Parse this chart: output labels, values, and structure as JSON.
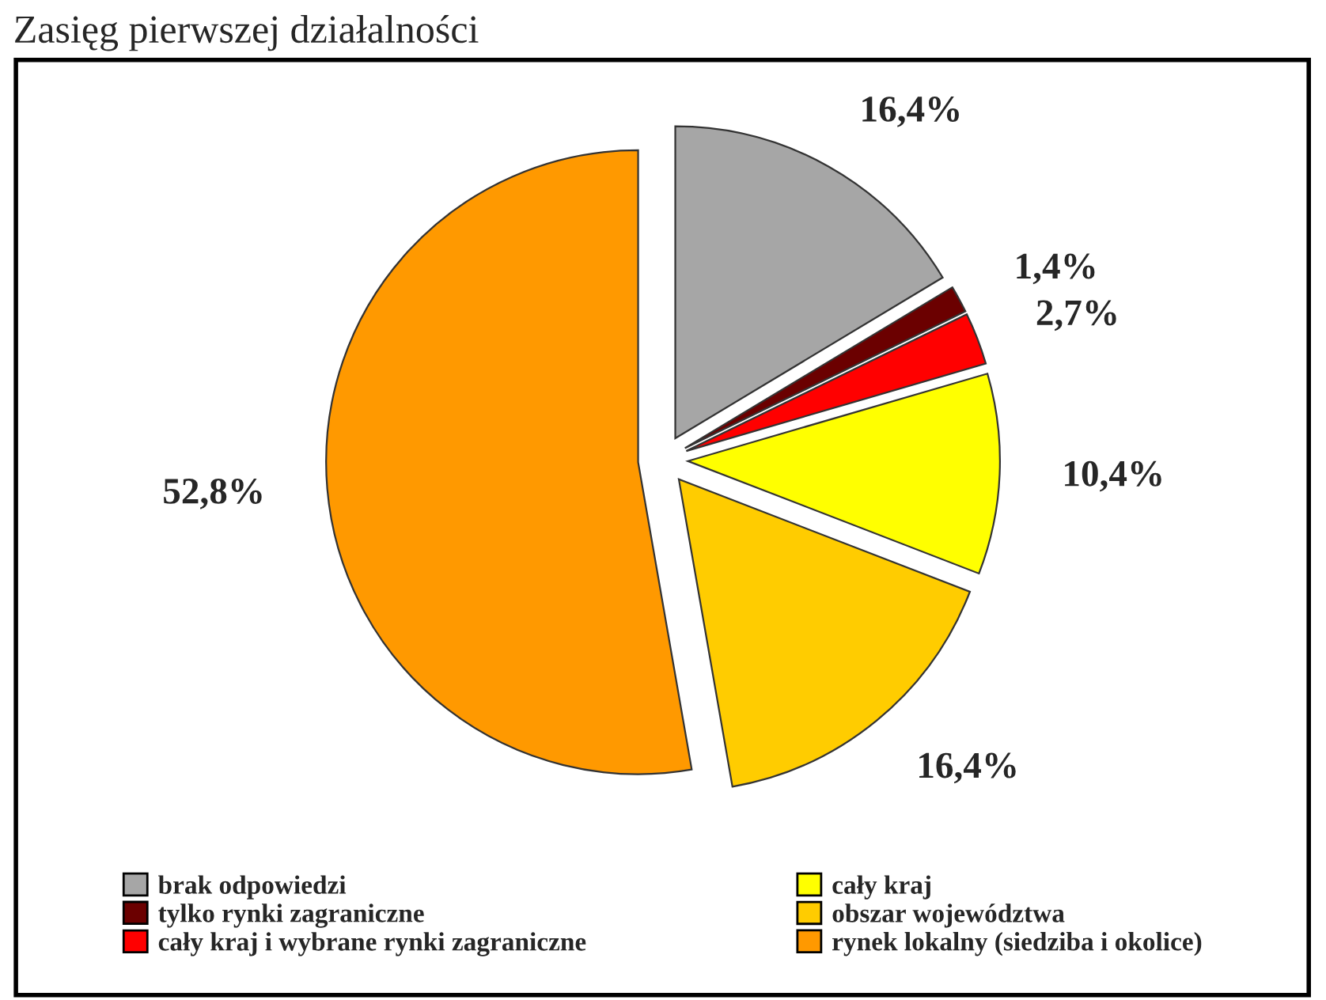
{
  "chart_data": {
    "type": "pie",
    "title": "Zasięg pierwszej działalności",
    "categories": [
      "brak odpowiedzi",
      "tylko rynki zagraniczne",
      "cały kraj i wybrane rynki zagraniczne",
      "cały kraj",
      "obszar województwa",
      "rynek lokalny (siedziba i okolice)"
    ],
    "values": [
      16.4,
      1.4,
      2.7,
      10.4,
      16.4,
      52.8
    ],
    "value_labels": [
      "16,4%",
      "1,4%",
      "2,7%",
      "10,4%",
      "16,4%",
      "52,8%"
    ],
    "colors": [
      "#a6a6a6",
      "#6b0000",
      "#ff0000",
      "#ffff00",
      "#ffcc00",
      "#ff9900"
    ],
    "legend": "bottom"
  }
}
